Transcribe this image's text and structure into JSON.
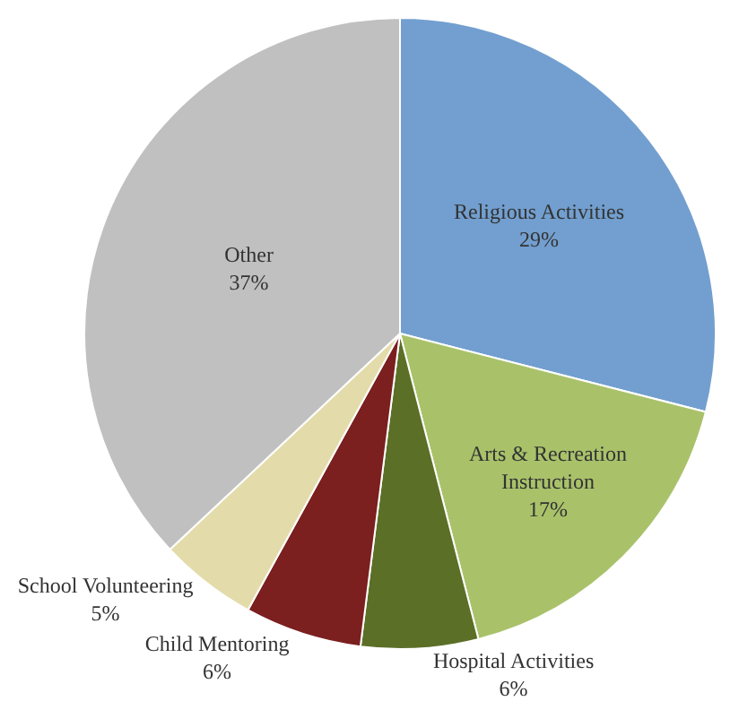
{
  "chart_data": {
    "type": "pie",
    "categories": [
      "Religious Activities",
      "Arts & Recreation Instruction",
      "Hospital Activities",
      "Child Mentoring",
      "School Volunteering",
      "Other"
    ],
    "values": [
      29,
      17,
      6,
      6,
      5,
      37
    ],
    "value_labels": [
      "29%",
      "17%",
      "6%",
      "6%",
      "5%",
      "37%"
    ],
    "colors": [
      "#729fcf",
      "#a9c26a",
      "#5b6f27",
      "#7b1f1f",
      "#e3dcaa",
      "#c0c0c0"
    ],
    "legend": false
  }
}
